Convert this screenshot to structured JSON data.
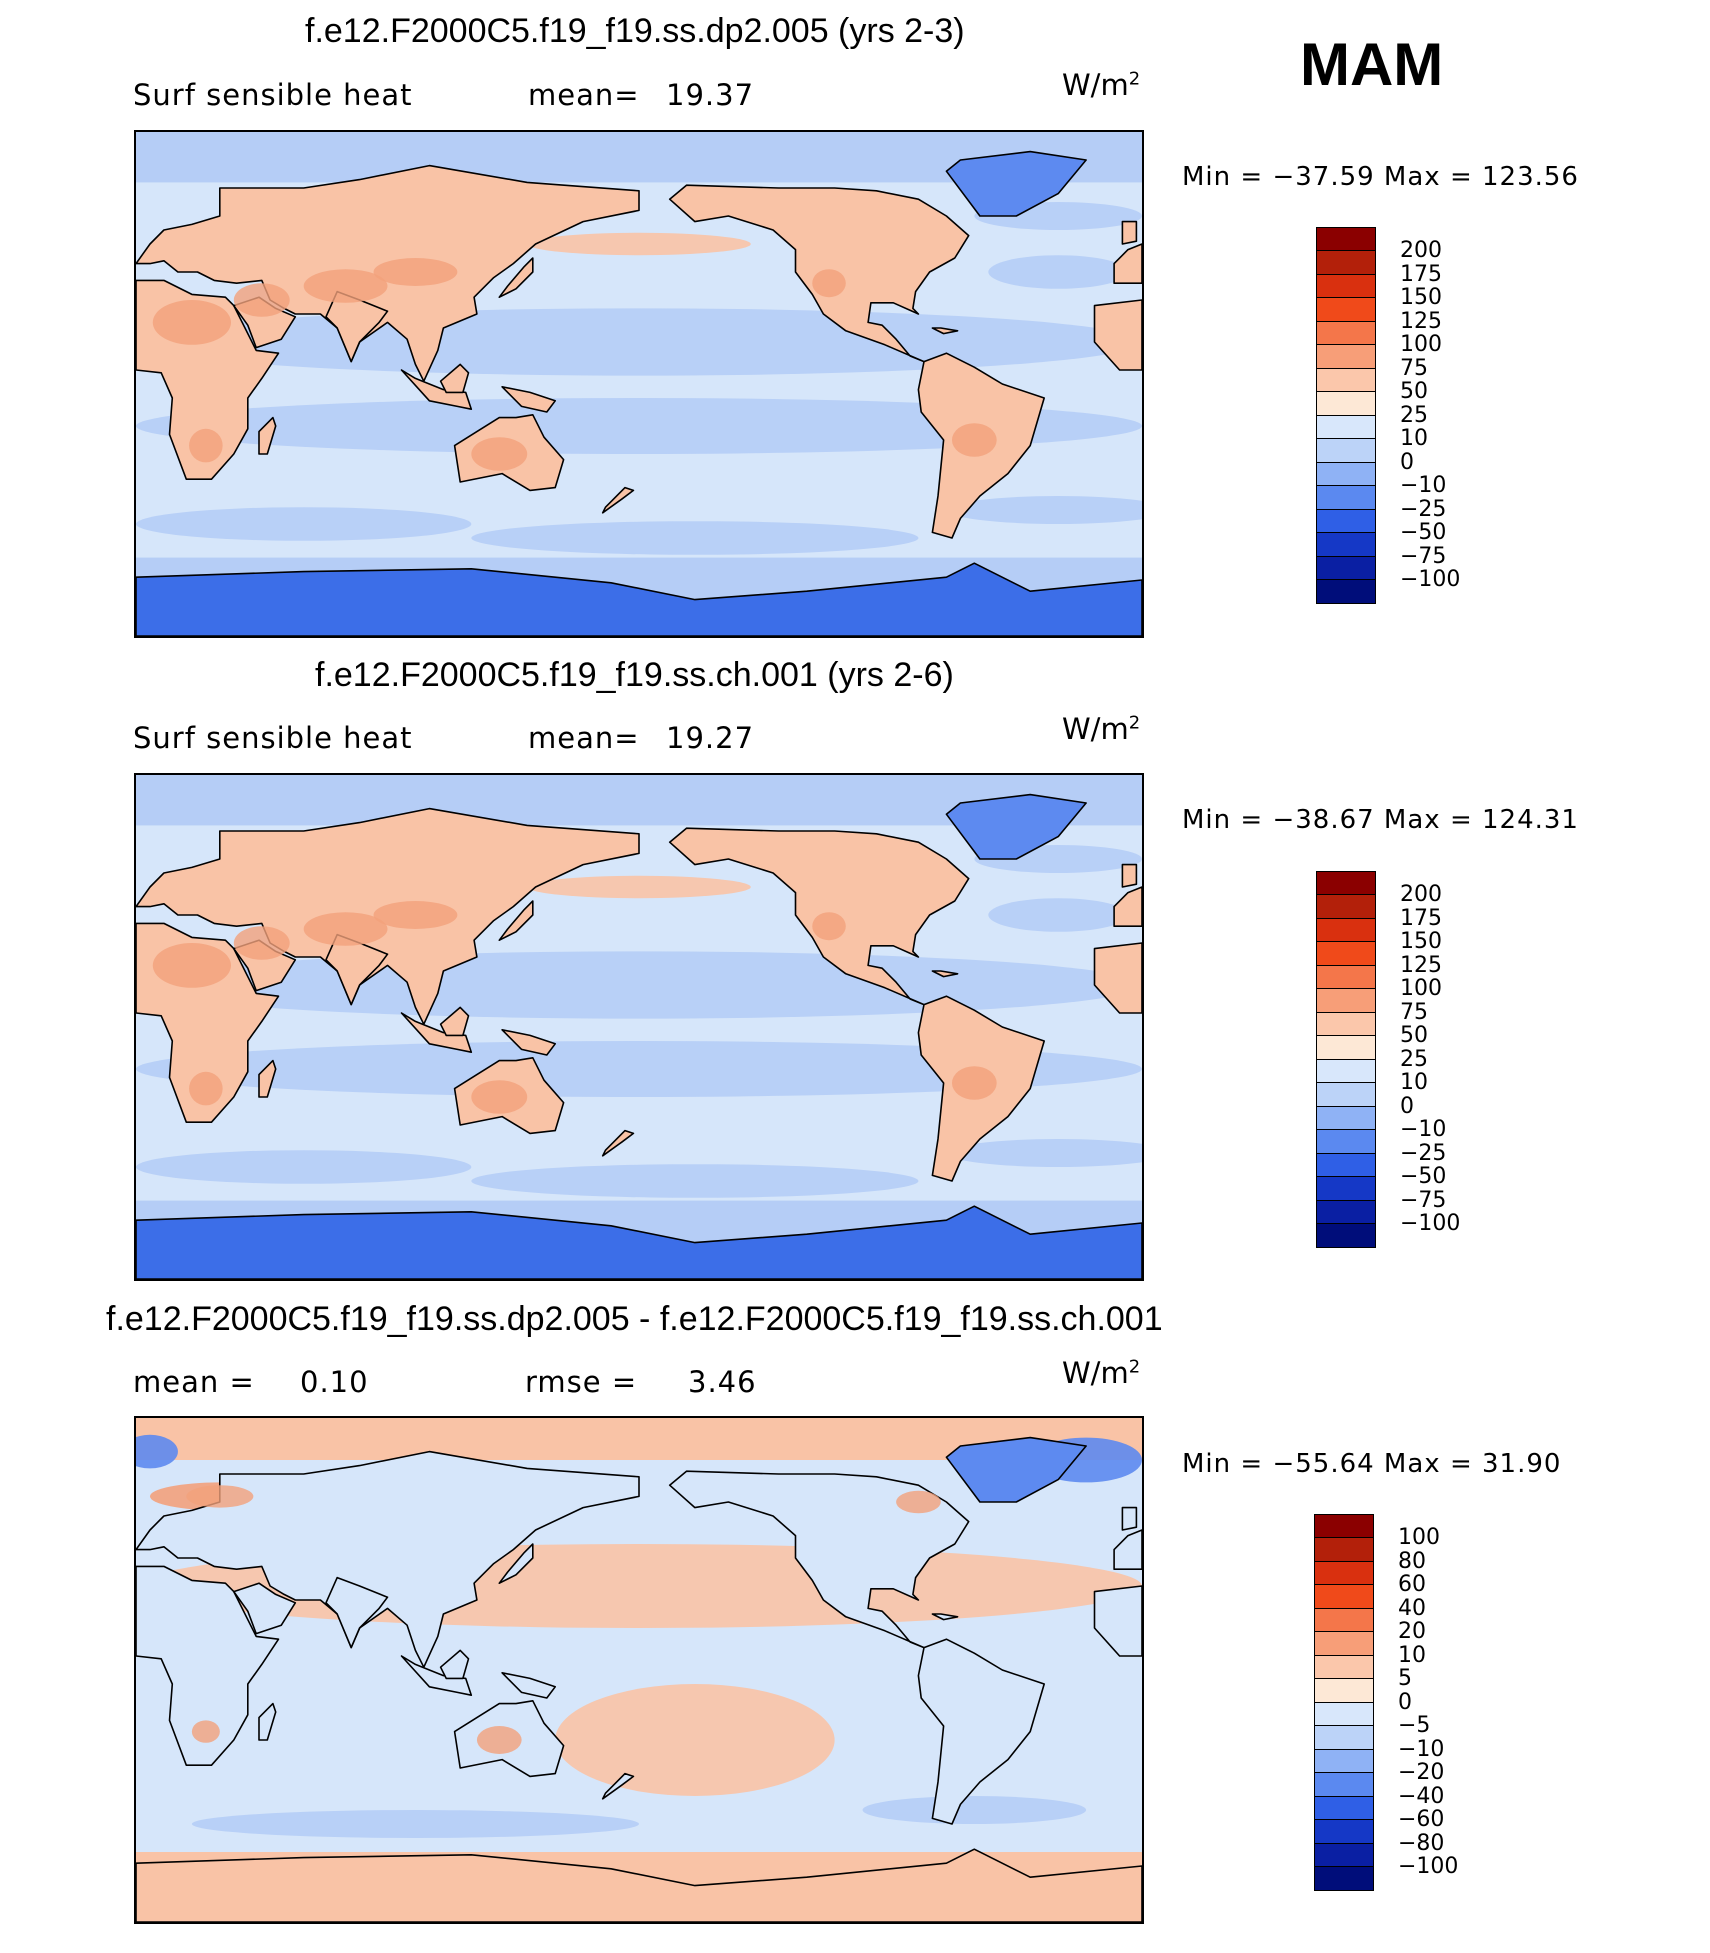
{
  "season": "MAM",
  "colors": {
    "ocean_pale": "#d6e6fa",
    "ocean_mid": "#b5cdf6",
    "ice_deep": "#3c6ee8",
    "ice_mid": "#5d8af0",
    "land_warm": "#f9c3a6",
    "land_hot": "#f3a17c",
    "coast": "#000000"
  },
  "panels": [
    {
      "title": "f.e12.F2000C5.f19_f19.ss.dp2.005 (yrs 2-3)",
      "left_label": "Surf sensible heat",
      "stat_label": "mean=",
      "stat_value": "19.37",
      "units": "W/m",
      "units_sup": "2",
      "min_max": "Min = −37.59 Max = 123.56",
      "variant": "control"
    },
    {
      "title": "f.e12.F2000C5.f19_f19.ss.ch.001 (yrs 2-6)",
      "left_label": "Surf sensible heat",
      "stat_label": "mean=",
      "stat_value": "19.27",
      "units": "W/m",
      "units_sup": "2",
      "min_max": "Min = −38.67 Max = 124.31",
      "variant": "control"
    },
    {
      "title": "f.e12.F2000C5.f19_f19.ss.dp2.005 - f.e12.F2000C5.f19_f19.ss.ch.001",
      "mean_label": "mean =",
      "mean_value": "0.10",
      "rmse_label": "rmse =",
      "rmse_value": "3.46",
      "units": "W/m",
      "units_sup": "2",
      "min_max": "Min = −55.64 Max =  31.90",
      "variant": "diff"
    }
  ],
  "colorbars": {
    "field": {
      "labels": [
        "200",
        "175",
        "150",
        "125",
        "100",
        "75",
        "50",
        "25",
        "10",
        "0",
        "−10",
        "−25",
        "−50",
        "−75",
        "−100"
      ],
      "colors": [
        "#8b0000",
        "#b3200a",
        "#d9300f",
        "#f04a1a",
        "#f4764a",
        "#f79e78",
        "#fbc7ab",
        "#fde8d6",
        "#d8e7fb",
        "#bcd3f8",
        "#8fb2f5",
        "#5b89f0",
        "#2f5fe6",
        "#1538c6",
        "#0a1fa3",
        "#000d7a"
      ]
    },
    "diff": {
      "labels": [
        "100",
        "80",
        "60",
        "40",
        "20",
        "10",
        "5",
        "0",
        "−5",
        "−10",
        "−20",
        "−40",
        "−60",
        "−80",
        "−100"
      ],
      "colors": [
        "#8b0000",
        "#b3200a",
        "#d9300f",
        "#f04a1a",
        "#f4764a",
        "#f79e78",
        "#fbc7ab",
        "#fde8d6",
        "#d8e7fb",
        "#bcd3f8",
        "#8fb2f5",
        "#5b89f0",
        "#2f5fe6",
        "#1538c6",
        "#0a1fa3",
        "#000d7a"
      ]
    }
  }
}
